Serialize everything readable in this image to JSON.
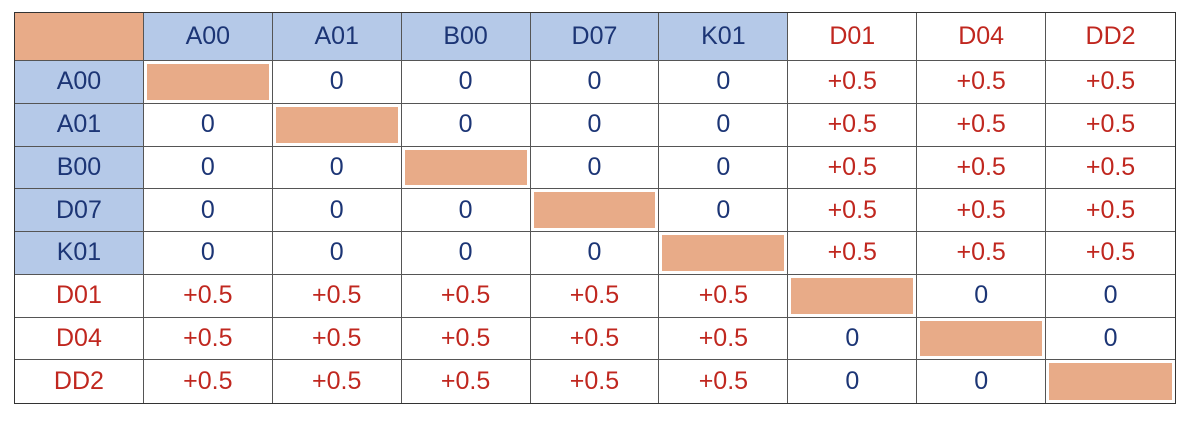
{
  "table": {
    "columns": [
      "A00",
      "A01",
      "B00",
      "D07",
      "K01",
      "D01",
      "D04",
      "DD2"
    ],
    "rows": [
      {
        "label": "A00",
        "cells": [
          null,
          "0",
          "0",
          "0",
          "0",
          "+0.5",
          "+0.5",
          "+0.5"
        ]
      },
      {
        "label": "A01",
        "cells": [
          "0",
          null,
          "0",
          "0",
          "0",
          "+0.5",
          "+0.5",
          "+0.5"
        ]
      },
      {
        "label": "B00",
        "cells": [
          "0",
          "0",
          null,
          "0",
          "0",
          "+0.5",
          "+0.5",
          "+0.5"
        ]
      },
      {
        "label": "D07",
        "cells": [
          "0",
          "0",
          "0",
          null,
          "0",
          "+0.5",
          "+0.5",
          "+0.5"
        ]
      },
      {
        "label": "K01",
        "cells": [
          "0",
          "0",
          "0",
          "0",
          null,
          "+0.5",
          "+0.5",
          "+0.5"
        ]
      },
      {
        "label": "D01",
        "cells": [
          "+0.5",
          "+0.5",
          "+0.5",
          "+0.5",
          "+0.5",
          null,
          "0",
          "0"
        ]
      },
      {
        "label": "D04",
        "cells": [
          "+0.5",
          "+0.5",
          "+0.5",
          "+0.5",
          "+0.5",
          "0",
          null,
          "0"
        ]
      },
      {
        "label": "DD2",
        "cells": [
          "+0.5",
          "+0.5",
          "+0.5",
          "+0.5",
          "+0.5",
          "0",
          "0",
          null
        ]
      }
    ]
  }
}
